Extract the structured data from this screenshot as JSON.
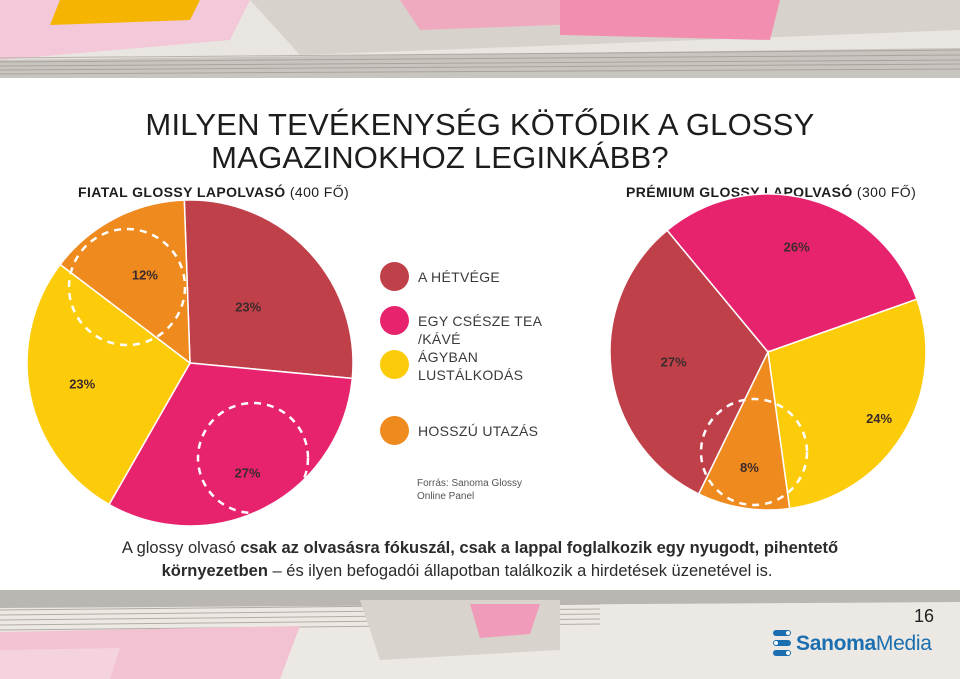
{
  "title": {
    "line1": "MILYEN TEVÉKENYSÉG KÖTŐDIK A GLOSSY",
    "line2": "MAGAZINOKHOZ LEGINKÁBB?"
  },
  "left_heading": {
    "bold": "FIATAL GLOSSY LAPOLVASÓ",
    "rest": " (400 FŐ)"
  },
  "right_heading": {
    "bold": "PRÉMIUM GLOSSY LAPOLVASÓ",
    "rest": " (300 FŐ)"
  },
  "legend": [
    {
      "label_1": "A HÉTVÉGE",
      "label_2": "",
      "color": "#c0404a"
    },
    {
      "label_1": "EGY CSÉSZE TEA /KÁVÉ",
      "label_2": "",
      "color": "#e8236e"
    },
    {
      "label_1": "ÁGYBAN",
      "label_2": "LUSTÁLKODÁS",
      "color": "#fccb0a"
    },
    {
      "label_1": "HOSSZÚ UTAZÁS",
      "label_2": "",
      "color": "#ef8a1e"
    }
  ],
  "chart_data": [
    {
      "type": "pie",
      "title": "FIATAL GLOSSY LAPOLVASÓ (400 FŐ)",
      "slices": [
        {
          "category": "A HÉTVÉGE",
          "value": 23,
          "label": "23%"
        },
        {
          "category": "EGY CSÉSZE TEA /KÁVÉ",
          "value": 27,
          "label": "27%"
        },
        {
          "category": "ÁGYBAN LUSTÁLKODÁS",
          "value": 23,
          "label": "23%"
        },
        {
          "category": "HOSSZÚ UTAZÁS",
          "value": 12,
          "label": "12%"
        }
      ]
    },
    {
      "type": "pie",
      "title": "PRÉMIUM GLOSSY LAPOLVASÓ (300 FŐ)",
      "slices": [
        {
          "category": "A HÉTVÉGE",
          "value": 27,
          "label": "27%"
        },
        {
          "category": "EGY CSÉSZE TEA /KÁVÉ",
          "value": 26,
          "label": "26%"
        },
        {
          "category": "ÁGYBAN LUSTÁLKODÁS",
          "value": 24,
          "label": "24%"
        },
        {
          "category": "HOSSZÚ UTAZÁS",
          "value": 8,
          "label": "8%"
        }
      ]
    }
  ],
  "source": {
    "line1": "Forrás: Sanoma Glossy",
    "line2": "Online Panel"
  },
  "footer": {
    "a": "A glossy olvasó ",
    "b": "csak az olvasásra fókuszál, csak a lappal foglalkozik egy nyugodt, pihentető",
    "c": "környezetben",
    "d": " – és ilyen befogadói állapotban találkozik a hirdetések üzenetével is."
  },
  "page_number": "16",
  "logo": {
    "bold": "Sanoma",
    "rest": "Media",
    "color": "#1b6fb0"
  }
}
